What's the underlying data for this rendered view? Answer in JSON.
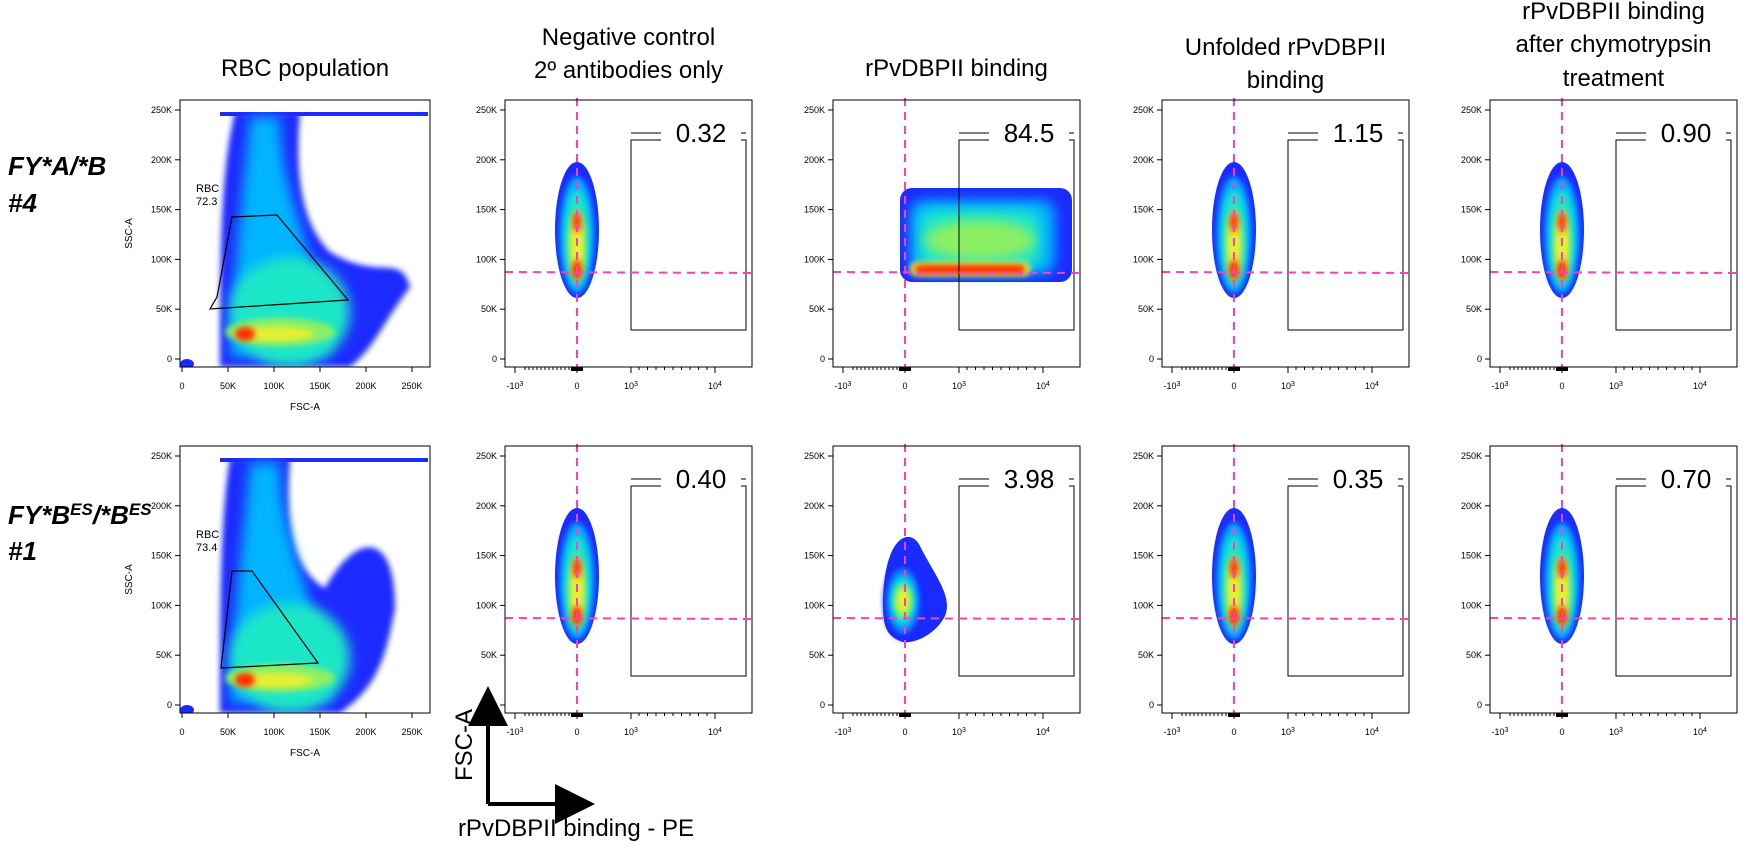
{
  "column_titles": [
    [
      "RBC population"
    ],
    [
      "Negative control",
      "2º antibodies only"
    ],
    [
      "rPvDBPII binding"
    ],
    [
      "Unfolded rPvDBPII",
      "binding"
    ],
    [
      "rPvDBPII binding",
      "after chymotrypsin",
      "treatment"
    ]
  ],
  "row_labels": [
    {
      "genotype": "FY*A/*B",
      "genotype_parts": [],
      "sample": "#4"
    },
    {
      "genotype": "",
      "genotype_parts": [
        {
          "t": "FY*B",
          "sup": false
        },
        {
          "t": "ES",
          "sup": true
        },
        {
          "t": "/*B",
          "sup": false
        },
        {
          "t": "ES",
          "sup": true
        }
      ],
      "sample": "#1"
    }
  ],
  "scatter_axes": {
    "xlabel": "FSC-A",
    "ylabel": "SSC-A",
    "xticks": [
      "0",
      "50K",
      "100K",
      "150K",
      "200K",
      "250K"
    ],
    "yticks": [
      "0",
      "50K",
      "100K",
      "150K",
      "200K",
      "250K"
    ]
  },
  "pe_axes": {
    "yticks": [
      "0",
      "50K",
      "100K",
      "150K",
      "200K",
      "250K"
    ],
    "xticks": [
      {
        "base": "-10",
        "exp": "3"
      },
      {
        "base": "0",
        "exp": ""
      },
      {
        "base": "10",
        "exp": "3"
      },
      {
        "base": "10",
        "exp": "4"
      }
    ]
  },
  "axis_legend": {
    "y": "FSC-A",
    "x": "rPvDBPII binding - PE"
  },
  "colors": {
    "threshold": "#ff3ebe",
    "gate": "#000000"
  },
  "chart_data": [
    {
      "type": "density-scatter",
      "row": 0,
      "col": 0,
      "gate_label": "RBC",
      "gate_value": "72.3",
      "xlim": [
        0,
        262144
      ],
      "ylim": [
        0,
        262144
      ]
    },
    {
      "type": "density-scatter",
      "row": 0,
      "col": 1,
      "gate_percent": "0.32",
      "population": "narrow"
    },
    {
      "type": "density-scatter",
      "row": 0,
      "col": 2,
      "gate_percent": "84.5",
      "population": "wide"
    },
    {
      "type": "density-scatter",
      "row": 0,
      "col": 3,
      "gate_percent": "1.15",
      "population": "narrow"
    },
    {
      "type": "density-scatter",
      "row": 0,
      "col": 4,
      "gate_percent": "0.90",
      "population": "narrow"
    },
    {
      "type": "density-scatter",
      "row": 1,
      "col": 0,
      "gate_label": "RBC",
      "gate_value": "73.4",
      "xlim": [
        0,
        262144
      ],
      "ylim": [
        0,
        262144
      ]
    },
    {
      "type": "density-scatter",
      "row": 1,
      "col": 1,
      "gate_percent": "0.40",
      "population": "narrow"
    },
    {
      "type": "density-scatter",
      "row": 1,
      "col": 2,
      "gate_percent": "3.98",
      "population": "tail"
    },
    {
      "type": "density-scatter",
      "row": 1,
      "col": 3,
      "gate_percent": "0.35",
      "population": "narrow"
    },
    {
      "type": "density-scatter",
      "row": 1,
      "col": 4,
      "gate_percent": "0.70",
      "population": "narrow"
    }
  ]
}
